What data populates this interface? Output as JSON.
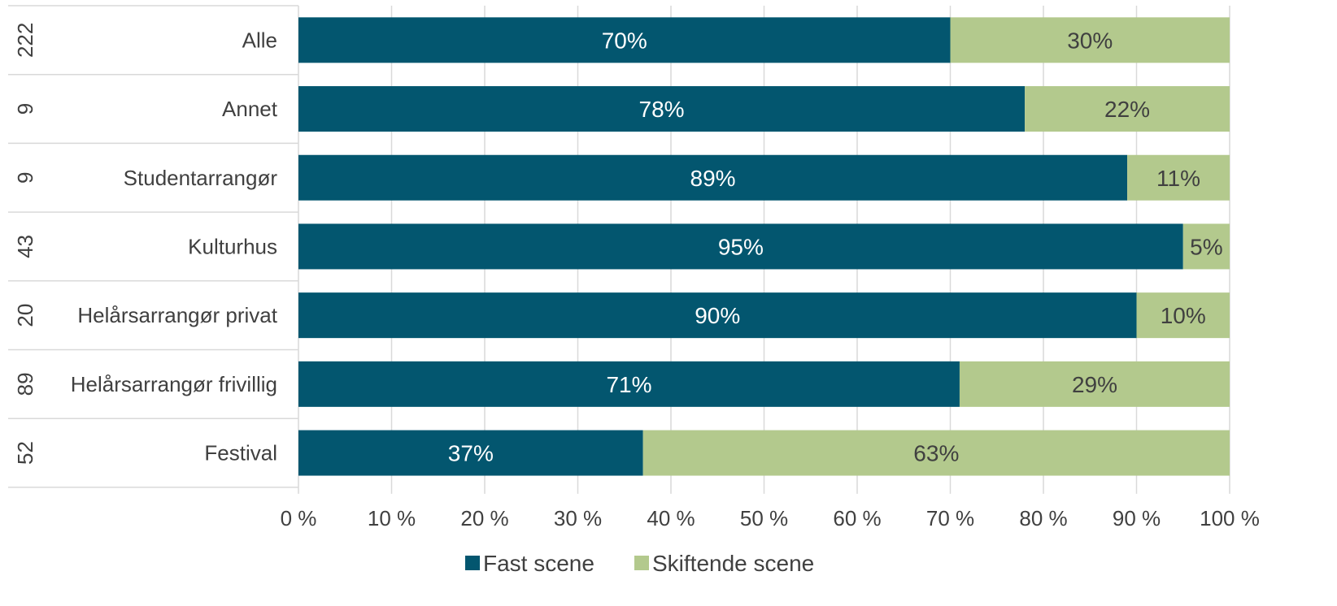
{
  "chart_data": {
    "type": "bar",
    "orientation": "horizontal",
    "stacked": true,
    "categories": [
      "Alle",
      "Annet",
      "Studentarrangør",
      "Kulturhus",
      "Helårsarrangør privat",
      "Helårsarrangør frivillig",
      "Festival"
    ],
    "n_values": [
      "222",
      "9",
      "9",
      "43",
      "20",
      "89",
      "52"
    ],
    "series": [
      {
        "name": "Fast scene",
        "values": [
          70,
          78,
          89,
          95,
          90,
          71,
          37
        ],
        "labels": [
          "70%",
          "78%",
          "89%",
          "95%",
          "90%",
          "71%",
          "37%"
        ],
        "color": "#03566f",
        "label_color": "#ffffff"
      },
      {
        "name": "Skiftende scene",
        "values": [
          30,
          22,
          11,
          5,
          10,
          29,
          63
        ],
        "labels": [
          "30%",
          "22%",
          "11%",
          "5%",
          "10%",
          "29%",
          "63%"
        ],
        "color": "#b3c98d",
        "label_color": "#404040"
      }
    ],
    "xlim": [
      0,
      100
    ],
    "xticks": [
      "0 %",
      "10 %",
      "20 %",
      "30 %",
      "40 %",
      "50 %",
      "60 %",
      "70 %",
      "80 %",
      "90 %",
      "100 %"
    ],
    "grid": true,
    "legend_position": "bottom",
    "title": "",
    "xlabel": "",
    "ylabel": ""
  }
}
